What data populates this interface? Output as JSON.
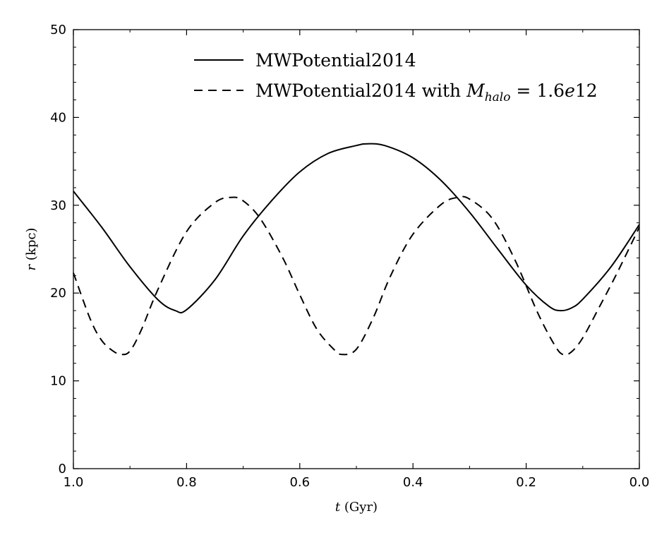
{
  "chart_data": {
    "type": "line",
    "xlabel": {
      "var": "t",
      "unit": " (Gyr)"
    },
    "ylabel": {
      "var": "r",
      "unit": " (kpc)"
    },
    "xlim": [
      1.0,
      0.0
    ],
    "ylim": [
      0,
      50
    ],
    "x_inverted": true,
    "grid": false,
    "legend_position": "top-center",
    "xticks": [
      1.0,
      0.8,
      0.6,
      0.4,
      0.2,
      0.0
    ],
    "xtick_labels": [
      "1.0",
      "0.8",
      "0.6",
      "0.4",
      "0.2",
      "0.0"
    ],
    "yticks": [
      0,
      10,
      20,
      30,
      40,
      50
    ],
    "ytick_labels": [
      "0",
      "10",
      "20",
      "30",
      "40",
      "50"
    ],
    "series": [
      {
        "name": "MWPotential2014",
        "style": "solid",
        "color": "#000000",
        "x": [
          1.0,
          0.95,
          0.9,
          0.85,
          0.82,
          0.8,
          0.75,
          0.7,
          0.65,
          0.6,
          0.55,
          0.5,
          0.48,
          0.45,
          0.4,
          0.35,
          0.3,
          0.25,
          0.2,
          0.16,
          0.14,
          0.12,
          0.1,
          0.05,
          0.0
        ],
        "y": [
          31.6,
          27.5,
          23.0,
          19.2,
          18.0,
          18.1,
          21.5,
          26.5,
          30.5,
          33.8,
          35.9,
          36.8,
          37.0,
          36.8,
          35.4,
          32.8,
          29.2,
          25.0,
          20.9,
          18.5,
          18.0,
          18.3,
          19.3,
          23.0,
          27.8
        ]
      },
      {
        "name": "MWPotential2014 with M_halo = 1.6e12",
        "name_parts": {
          "prefix": "MWPotential2014 with ",
          "M": "M",
          "sub": "halo",
          "eq": " = 1.6",
          "e": "e",
          "num": "12"
        },
        "style": "dashed",
        "color": "#000000",
        "x": [
          1.0,
          0.97,
          0.95,
          0.93,
          0.915,
          0.9,
          0.88,
          0.85,
          0.8,
          0.75,
          0.72,
          0.7,
          0.67,
          0.63,
          0.6,
          0.57,
          0.54,
          0.525,
          0.5,
          0.47,
          0.44,
          0.4,
          0.35,
          0.32,
          0.3,
          0.26,
          0.22,
          0.18,
          0.15,
          0.135,
          0.12,
          0.1,
          0.07,
          0.04,
          0.0
        ],
        "y": [
          22.3,
          17.0,
          14.6,
          13.4,
          13.0,
          13.4,
          15.8,
          20.5,
          27.0,
          30.3,
          30.9,
          30.5,
          28.5,
          24.0,
          19.8,
          15.9,
          13.6,
          13.0,
          13.6,
          17.2,
          21.9,
          26.7,
          30.1,
          30.9,
          30.7,
          28.5,
          23.8,
          17.8,
          14.1,
          13.0,
          13.3,
          14.9,
          18.5,
          22.2,
          27.5
        ]
      }
    ]
  }
}
